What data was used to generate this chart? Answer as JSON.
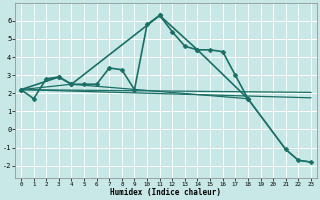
{
  "xlabel": "Humidex (Indice chaleur)",
  "bg_color": "#c8e8e8",
  "grid_color": "#ffffff",
  "line_color": "#1a6e64",
  "xlim": [
    -0.5,
    23.5
  ],
  "ylim": [
    -2.7,
    7.0
  ],
  "xticks": [
    0,
    1,
    2,
    3,
    4,
    5,
    6,
    7,
    8,
    9,
    10,
    11,
    12,
    13,
    14,
    15,
    16,
    17,
    18,
    19,
    20,
    21,
    22,
    23
  ],
  "yticks": [
    -2,
    -1,
    0,
    1,
    2,
    3,
    4,
    5,
    6
  ],
  "series": [
    {
      "x": [
        0,
        1,
        2,
        3,
        4,
        5,
        6,
        7,
        8,
        9,
        10,
        11,
        12,
        13,
        14,
        15,
        16,
        17,
        18
      ],
      "y": [
        2.2,
        1.7,
        2.8,
        2.9,
        2.5,
        2.5,
        2.5,
        3.4,
        3.3,
        2.2,
        5.8,
        6.3,
        5.4,
        4.6,
        4.4,
        4.4,
        4.3,
        3.0,
        1.7
      ],
      "marker": "D",
      "markersize": 2.5,
      "linewidth": 1.2
    },
    {
      "x": [
        0,
        3,
        4,
        11,
        14,
        18,
        21,
        22,
        23
      ],
      "y": [
        2.2,
        2.9,
        2.5,
        6.3,
        4.4,
        1.7,
        -1.1,
        -1.7,
        -1.8
      ],
      "marker": "D",
      "markersize": 2.5,
      "linewidth": 1.2
    },
    {
      "x": [
        0,
        23
      ],
      "y": [
        2.2,
        2.05
      ],
      "marker": null,
      "markersize": 0,
      "linewidth": 0.9
    },
    {
      "x": [
        0,
        23
      ],
      "y": [
        2.2,
        1.75
      ],
      "marker": null,
      "markersize": 0,
      "linewidth": 0.9
    },
    {
      "x": [
        0,
        4,
        18,
        21,
        22,
        23
      ],
      "y": [
        2.2,
        2.5,
        1.7,
        -1.1,
        -1.7,
        -1.8
      ],
      "marker": null,
      "markersize": 0,
      "linewidth": 0.9
    }
  ]
}
